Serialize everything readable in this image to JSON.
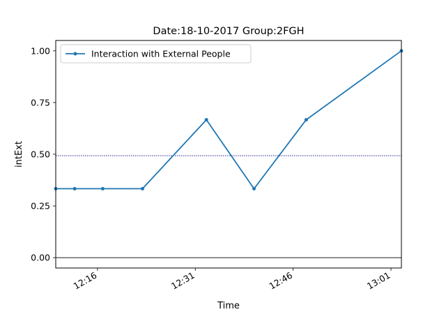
{
  "chart_data": {
    "type": "line",
    "title": "Date:18-10-2017  Group:2FGH",
    "xlabel": "Time",
    "ylabel": "intExt",
    "x_ticks": [
      {
        "label": "12:16",
        "minute": 16
      },
      {
        "label": "12:31",
        "minute": 31
      },
      {
        "label": "12:46",
        "minute": 46
      },
      {
        "label": "13:01",
        "minute": 61
      }
    ],
    "y_ticks": [
      "0.00",
      "0.25",
      "0.50",
      "0.75",
      "1.00"
    ],
    "xlim_minutes": [
      9.6,
      62.6
    ],
    "ylim": [
      -0.05,
      1.05
    ],
    "mean_line": 0.4931,
    "zero_line": 0,
    "legend": {
      "location": "upper left"
    },
    "series": [
      {
        "name": "Interaction with External People",
        "color": "#1f77b4",
        "marker": "dot",
        "points": [
          {
            "minute": 9.6,
            "value": 0.3333
          },
          {
            "minute": 12.5,
            "value": 0.3333
          },
          {
            "minute": 16.8,
            "value": 0.3333
          },
          {
            "minute": 22.9,
            "value": 0.3333
          },
          {
            "minute": 32.7,
            "value": 0.6667
          },
          {
            "minute": 40.0,
            "value": 0.3333
          },
          {
            "minute": 48.0,
            "value": 0.6667
          },
          {
            "minute": 62.6,
            "value": 1.0
          }
        ]
      }
    ],
    "mean_line_color": "#00008b",
    "zero_line_color": "#000000"
  }
}
